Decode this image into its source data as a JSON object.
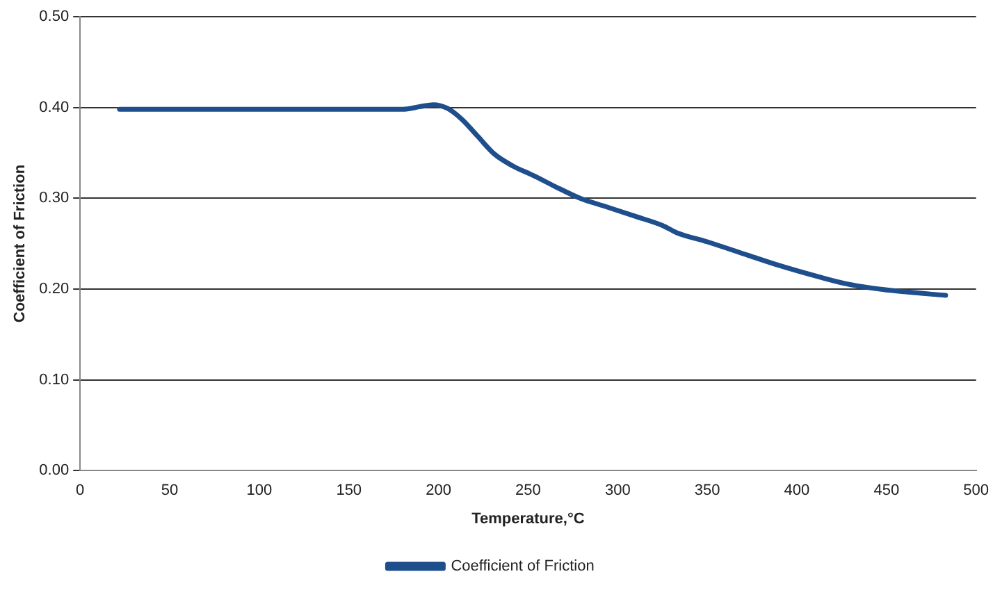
{
  "chart_data": {
    "type": "line",
    "xlabel": "Temperature,°C",
    "ylabel": "Coefficient of Friction",
    "x": [
      22,
      100,
      150,
      180,
      190,
      197,
      205,
      213,
      222,
      231,
      242,
      253,
      265,
      279,
      293,
      310,
      325,
      333,
      350,
      373,
      390,
      413,
      427,
      442,
      460,
      483
    ],
    "series": [
      {
        "name": "Coefficient of Friction",
        "color": "#1f4e8c",
        "values": [
          0.398,
          0.398,
          0.398,
          0.398,
          0.401,
          0.403,
          0.399,
          0.387,
          0.368,
          0.349,
          0.335,
          0.325,
          0.313,
          0.3,
          0.291,
          0.28,
          0.27,
          0.262,
          0.252,
          0.237,
          0.226,
          0.213,
          0.206,
          0.201,
          0.197,
          0.193
        ]
      }
    ],
    "xlim": [
      0,
      500
    ],
    "xticks": [
      0,
      50,
      100,
      150,
      200,
      250,
      300,
      350,
      400,
      450,
      500
    ],
    "ylim": [
      0,
      0.5
    ],
    "yticks": [
      {
        "value": 0,
        "label": "0.00"
      },
      {
        "value": 0.1,
        "label": "0.10"
      },
      {
        "value": 0.2,
        "label": "0.20"
      },
      {
        "value": 0.3,
        "label": "0.30"
      },
      {
        "value": 0.4,
        "label": "0.40"
      },
      {
        "value": 0.5,
        "label": "0.50"
      }
    ],
    "grid": "y",
    "legend": "bottom",
    "marker": "none",
    "line_style": "solid"
  }
}
